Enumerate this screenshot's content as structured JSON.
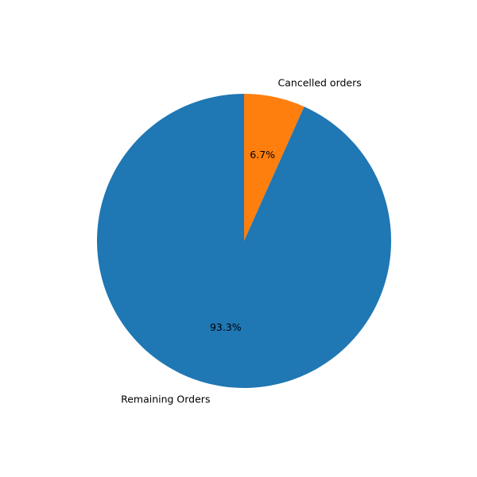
{
  "chart_data": {
    "type": "pie",
    "categories": [
      "Cancelled orders",
      "Remaining Orders"
    ],
    "values": [
      6.7,
      93.3
    ],
    "percent_labels": [
      "6.7%",
      "93.3%"
    ],
    "colors": [
      "#ff7f0e",
      "#1f77b4"
    ],
    "start_angle": "top",
    "direction": "clockwise",
    "title": "",
    "legend": "none"
  }
}
